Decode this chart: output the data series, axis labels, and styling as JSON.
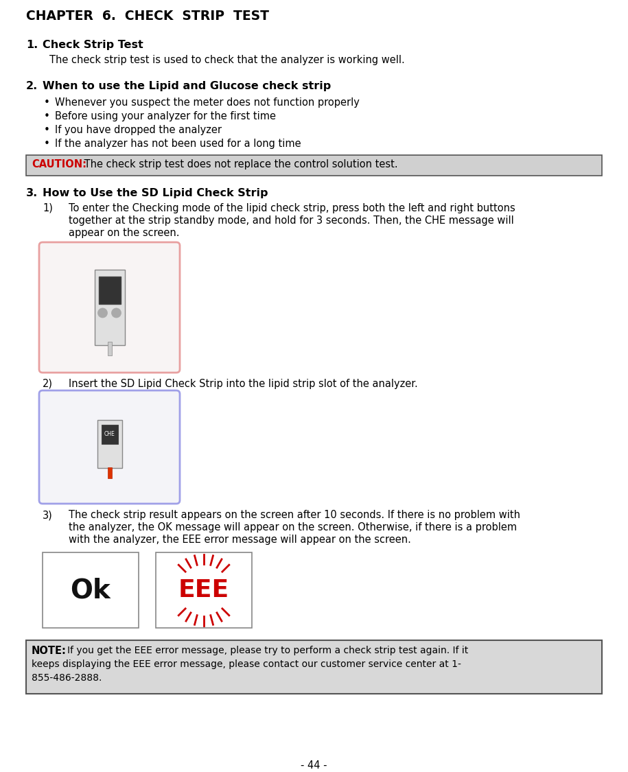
{
  "title": "CHAPTER  6.  CHECK  STRIP  TEST",
  "background_color": "#ffffff",
  "page_number": "- 44 -",
  "section1_heading_num": "1.",
  "section1_heading_text": "Check Strip Test",
  "section1_body": "The check strip test is used to check that the analyzer is working well.",
  "section2_heading_num": "2.",
  "section2_heading_text": "When to use the Lipid and Glucose check strip",
  "section2_bullets": [
    "Whenever you suspect the meter does not function properly",
    "Before using your analyzer for the first time",
    "If you have dropped the analyzer",
    "If the analyzer has not been used for a long time"
  ],
  "caution_label": "CAUTION:",
  "caution_text": " The check strip test does not replace the control solution test.",
  "caution_bg": "#d0d0d0",
  "caution_border": "#555555",
  "caution_label_color": "#cc0000",
  "section3_heading_num": "3.",
  "section3_heading_text": "How to Use the SD Lipid Check Strip",
  "step1_num": "1)",
  "step1_lines": [
    "To enter the Checking mode of the lipid check strip, press both the left and right buttons",
    "together at the strip standby mode, and hold for 3 seconds. Then, the CHE message will",
    "appear on the screen."
  ],
  "step2_num": "2)",
  "step2_text": "Insert the SD Lipid Check Strip into the lipid strip slot of the analyzer.",
  "step3_num": "3)",
  "step3_lines": [
    "The check strip result appears on the screen after 10 seconds. If there is no problem with",
    "the analyzer, the OK message will appear on the screen. Otherwise, if there is a problem",
    "with the analyzer, the EEE error message will appear on the screen."
  ],
  "note_label": "NOTE:",
  "note_line1": "If you get the EEE error message, please try to perform a check strip test again. If it",
  "note_line2": "keeps displaying the EEE error message, please contact our customer service center at 1-",
  "note_line3": "855-486-2888.",
  "note_bg": "#d8d8d8",
  "note_border": "#555555",
  "img1_border": "#e8a0a0",
  "img2_border": "#a0a0e8",
  "img3a_border": "#888888",
  "img3b_border": "#888888"
}
